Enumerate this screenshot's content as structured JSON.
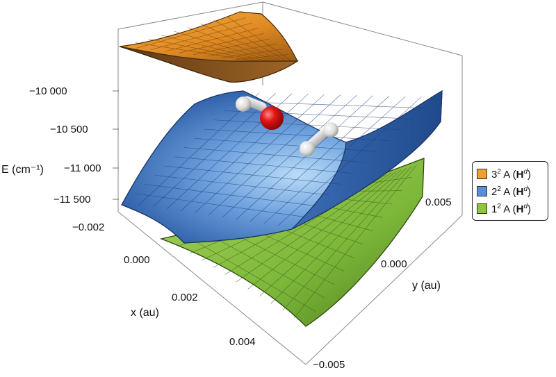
{
  "chart_data": {
    "type": "surface3d",
    "ylabel_z": "E (cm⁻¹)",
    "xlabel": "x  (au)",
    "ylabel": "y  (au)",
    "z_ticks": [
      "−10 000",
      "−10 500",
      "−11 000",
      "−11 500"
    ],
    "x_ticks": [
      "−0.002",
      "0.000",
      "0.002",
      "0.004"
    ],
    "y_ticks": [
      "0.005",
      "0.000",
      "−0.005"
    ],
    "zlim": [
      -11800,
      -9700
    ],
    "xlim": [
      -0.002,
      0.005
    ],
    "ylim": [
      -0.005,
      0.005
    ],
    "series": [
      {
        "name": "3² A (Hᵈ)",
        "state": "3",
        "label_sup": "2",
        "label_tail": " A (",
        "label_h": "H",
        "label_hsup": "d",
        "label_close": ")",
        "color": "#f0a030"
      },
      {
        "name": "2² A (Hᵈ)",
        "state": "2",
        "label_sup": "2",
        "label_tail": " A (",
        "label_h": "H",
        "label_hsup": "d",
        "label_close": ")",
        "color": "#5a8fd8"
      },
      {
        "name": "1² A (Hᵈ)",
        "state": "1",
        "label_sup": "2",
        "label_tail": " A (",
        "label_h": "H",
        "label_hsup": "d",
        "label_close": ")",
        "color": "#8cc63f"
      }
    ]
  }
}
